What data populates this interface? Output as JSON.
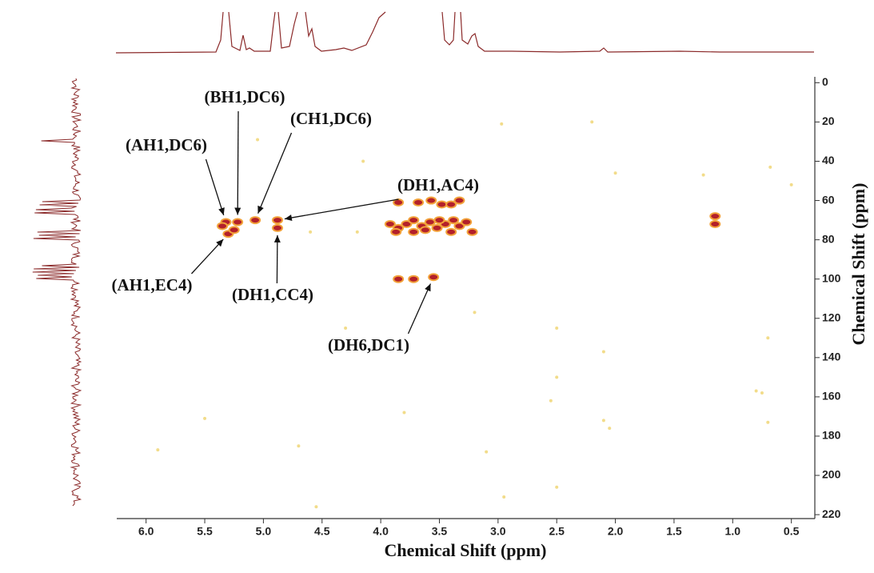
{
  "chart_data": {
    "type": "scatter",
    "x_label": "Chemical Shift (ppm)",
    "y_label": "Chemical Shift (ppm)",
    "xlim": [
      6.25,
      0.3
    ],
    "ylim": [
      -3,
      222
    ],
    "xticks": [
      {
        "value": 6,
        "label": "6.0"
      },
      5.5,
      {
        "value": 5,
        "label": "5.0"
      },
      4.5,
      {
        "value": 4,
        "label": "4.0"
      },
      3.5,
      {
        "value": 3,
        "label": "3.0"
      },
      2.5,
      {
        "value": 2,
        "label": "2.0"
      },
      1.5,
      {
        "value": 1,
        "label": "1.0"
      },
      0.5
    ],
    "yticks": [
      0,
      20,
      40,
      60,
      80,
      100,
      120,
      140,
      160,
      180,
      200,
      220
    ],
    "series": [
      {
        "color": "#b3202a",
        "x": [
          5.32,
          5.22,
          5.07,
          4.88,
          4.88,
          5.3,
          3.55,
          3.85,
          3.68,
          3.57,
          3.48,
          3.4,
          3.33,
          3.92,
          3.85,
          3.78,
          3.72,
          3.65,
          3.58,
          3.52,
          3.45,
          3.38,
          3.33,
          3.27,
          3.22,
          3.87,
          3.72,
          3.62,
          3.5,
          3.4,
          3.72,
          3.85,
          5.35,
          5.25,
          1.15,
          1.15
        ],
        "y": [
          71,
          71,
          70,
          70,
          74,
          77,
          99,
          61,
          61,
          60,
          62,
          62,
          60,
          72,
          74,
          72,
          70,
          73,
          71,
          74,
          72,
          70,
          73,
          71,
          76,
          76,
          76,
          75,
          70,
          76,
          100,
          100,
          73,
          75,
          68,
          72
        ],
        "labels": [
          "(AH1,DC6)",
          "(BH1,DC6)",
          "(CH1,DC6)",
          "(DH1,AC4)",
          "(DH1,CC4)",
          "(AH1,EC4)",
          "(DH6,DC1)",
          null,
          null,
          null,
          null,
          null,
          null,
          null,
          null,
          null,
          null,
          null,
          null,
          null,
          null,
          null,
          null,
          null,
          null,
          null,
          null,
          null,
          null,
          null,
          null,
          null,
          null,
          null,
          null,
          null
        ]
      },
      {
        "color": "#f2dc8a",
        "x": [
          2.97,
          2.2,
          2.0,
          0.68,
          0.5,
          2.5,
          2.1,
          2.55,
          2.5,
          2.1,
          2.05,
          0.8,
          0.75,
          5.5,
          5.9,
          4.7,
          3.1,
          2.5,
          2.95,
          4.55,
          0.7,
          0.7,
          1.25,
          4.3,
          3.2,
          3.8,
          5.05,
          4.15,
          4.6,
          4.2
        ],
        "y": [
          21,
          20,
          46,
          43,
          52,
          125,
          137,
          162,
          150,
          172,
          176,
          157,
          158,
          171,
          187,
          185,
          188,
          206,
          211,
          216,
          130,
          173,
          47,
          125,
          117,
          168,
          29,
          40,
          76,
          76
        ]
      }
    ]
  }
}
